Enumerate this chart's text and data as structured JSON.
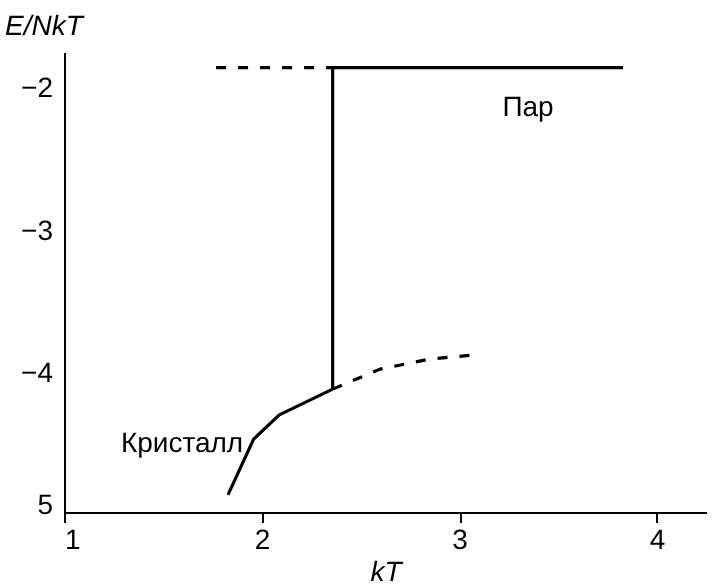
{
  "chart_data": {
    "type": "line",
    "xlabel": "kT",
    "ylabel": "E/NkT",
    "xlim": [
      1,
      4.25
    ],
    "ylim": [
      -4.97,
      -1.75
    ],
    "xticks": [
      1,
      2,
      3,
      4
    ],
    "yticks": [
      -2,
      -3,
      -4,
      {
        "value": -4.92,
        "label": "5"
      }
    ],
    "series": [
      {
        "color": "#000000",
        "line_style": "dashed",
        "x": [
          1.77,
          2.36
        ],
        "values": [
          -1.86,
          -1.86
        ]
      },
      {
        "color": "#000000",
        "line_style": "solid",
        "x": [
          2.36,
          2.36,
          3.83
        ],
        "values": [
          -4.11,
          -1.86,
          -1.86
        ]
      },
      {
        "color": "#000000",
        "line_style": "solid",
        "x": [
          1.83,
          1.96,
          2.09,
          2.36
        ],
        "values": [
          -4.85,
          -4.46,
          -4.29,
          -4.11
        ]
      },
      {
        "color": "#000000",
        "line_style": "dashed",
        "x": [
          2.36,
          2.6,
          2.85,
          3.08
        ],
        "values": [
          -4.11,
          -3.97,
          -3.9,
          -3.87
        ]
      }
    ],
    "annotations": [
      "Пар",
      "Кристалл"
    ]
  }
}
